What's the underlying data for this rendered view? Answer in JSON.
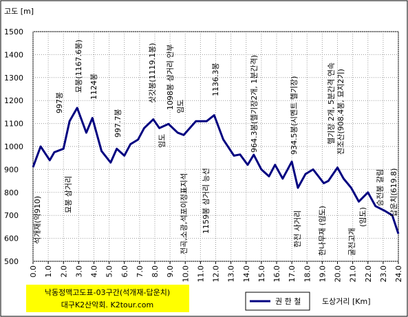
{
  "chart_data": {
    "type": "line",
    "y_label": "고도 [m]",
    "x_label": "도상거리 [Km]",
    "caption": [
      "낙동정맥고도표-03구간(석개재-답운치)",
      "대구K2산악회. K2tour.com"
    ],
    "xlim": [
      0,
      24
    ],
    "ylim": [
      500,
      1500
    ],
    "xticks": [
      {
        "value": 0,
        "label": "0.0"
      },
      {
        "value": 1,
        "label": "1.0"
      },
      {
        "value": 2,
        "label": "2.0"
      },
      {
        "value": 3,
        "label": "3.0"
      },
      {
        "value": 4,
        "label": "4.0"
      },
      {
        "value": 5,
        "label": "5.0"
      },
      {
        "value": 6,
        "label": "6.0"
      },
      {
        "value": 7,
        "label": "7.0"
      },
      {
        "value": 8,
        "label": "8.0"
      },
      {
        "value": 9,
        "label": "9.0"
      },
      {
        "value": 10,
        "label": "10.0"
      },
      {
        "value": 11,
        "label": "11.0"
      },
      {
        "value": 12,
        "label": "12.0"
      },
      {
        "value": 13,
        "label": "13.0"
      },
      {
        "value": 14,
        "label": "14.0"
      },
      {
        "value": 15,
        "label": "15.0"
      },
      {
        "value": 16,
        "label": "16.0"
      },
      {
        "value": 17,
        "label": "17.0"
      },
      {
        "value": 18,
        "label": "18.0"
      },
      {
        "value": 19,
        "label": "19.0"
      },
      {
        "value": 20,
        "label": "20.0"
      },
      {
        "value": 21,
        "label": "21.0"
      },
      {
        "value": 22,
        "label": "22.0"
      },
      {
        "value": 23,
        "label": "23.0"
      },
      {
        "value": 24,
        "label": "24.0"
      }
    ],
    "yticks": [
      500,
      600,
      700,
      800,
      900,
      1000,
      1100,
      1200,
      1300,
      1400,
      1500
    ],
    "grid": true,
    "x": [
      0.0,
      0.5,
      1.1,
      1.4,
      2.0,
      2.4,
      2.9,
      3.5,
      3.9,
      4.5,
      5.1,
      5.5,
      6.0,
      6.4,
      6.9,
      7.3,
      7.9,
      8.3,
      8.9,
      9.5,
      9.9,
      10.7,
      11.4,
      11.9,
      12.5,
      13.2,
      13.6,
      14.1,
      14.5,
      15.0,
      15.5,
      15.9,
      16.4,
      17.0,
      17.4,
      17.9,
      18.4,
      19.1,
      19.4,
      20.0,
      20.4,
      20.9,
      21.4,
      22.0,
      22.5,
      23.1,
      23.6,
      24.0
    ],
    "series": [
      {
        "name": "권 한 철",
        "color": "#000080",
        "values": [
          910,
          1000,
          940,
          975,
          990,
          1110,
          1168,
          1060,
          1124,
          980,
          930,
          990,
          960,
          1010,
          1030,
          1080,
          1118,
          1080,
          1098,
          1060,
          1050,
          1110,
          1110,
          1136,
          1030,
          960,
          965,
          920,
          964,
          900,
          870,
          920,
          860,
          934,
          820,
          880,
          900,
          840,
          850,
          908,
          860,
          820,
          760,
          800,
          740,
          720,
          700,
          620
        ]
      }
    ],
    "annotations": [
      "석개재(약910)",
      "997봉",
      "묘봉 삼거리",
      "묘봉(1167.6봉)",
      "1124봉",
      "997.7봉",
      "삿갓봉(1119.1봉)",
      "임도",
      "1098봉 삼거리 안부",
      "임도",
      "전곡,소광,석포이정표지석",
      "1159봉 삼거리 능선",
      "1136.3봉",
      "964.3봉(헬기장2개, 1분간격)",
      "934.5봉(시멘트 헬기장)",
      "한전 사거리",
      "한나무재 (임도)",
      "헬기장 2개, 5분간격 연속",
      "진조산(908.4봉, 묘지2기)",
      "굴전고개",
      "(임도)",
      "승전봉 갈림",
      "답운치(619.8)"
    ]
  }
}
